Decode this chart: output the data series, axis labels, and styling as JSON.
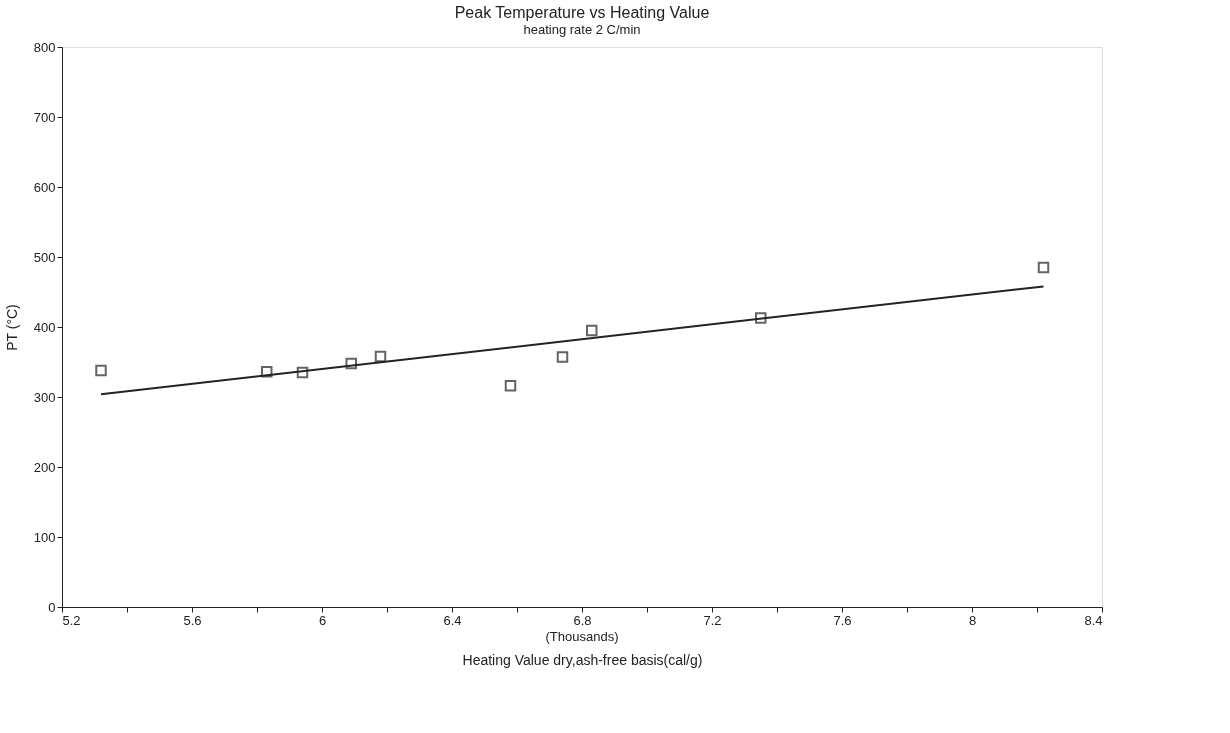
{
  "chart_data": {
    "type": "scatter",
    "title": "Peak Temperature vs Heating Value",
    "subtitle": "heating rate 2 C/min",
    "xlabel": "Heating Value dry,ash-free basis(cal/g)",
    "ylabel": "PT (°C)",
    "annotations": [
      "(Thousands)"
    ],
    "series": [
      {
        "color": "#222222",
        "marker": "square",
        "x": [
          5.32,
          5.83,
          5.94,
          6.09,
          6.18,
          6.58,
          6.74,
          6.83,
          7.35,
          8.22
        ],
        "values": [
          338,
          336,
          335,
          348,
          358,
          316,
          357,
          395,
          413,
          485
        ]
      },
      {
        "type": "line",
        "color": "#222222",
        "marker": "none",
        "line_style": "solid",
        "x": [
          5.32,
          8.22
        ],
        "values": [
          304,
          458
        ]
      }
    ],
    "xlim": [
      5.2,
      8.4
    ],
    "xticks": [
      5.2,
      {
        "value": 5.4,
        "label": null
      },
      5.6,
      {
        "value": 5.8,
        "label": null
      },
      6,
      {
        "value": 6.2,
        "label": null
      },
      6.4,
      {
        "value": 6.6,
        "label": null
      },
      6.8,
      {
        "value": 7.0,
        "label": null
      },
      7.2,
      {
        "value": 7.4,
        "label": null
      },
      7.6,
      {
        "value": 7.8,
        "label": null
      },
      8,
      {
        "value": 8.2,
        "label": null
      },
      8.4
    ],
    "ylim": [
      0,
      800
    ],
    "yticks": [
      0,
      100,
      200,
      300,
      400,
      500,
      600,
      700,
      800
    ],
    "grid": false
  }
}
